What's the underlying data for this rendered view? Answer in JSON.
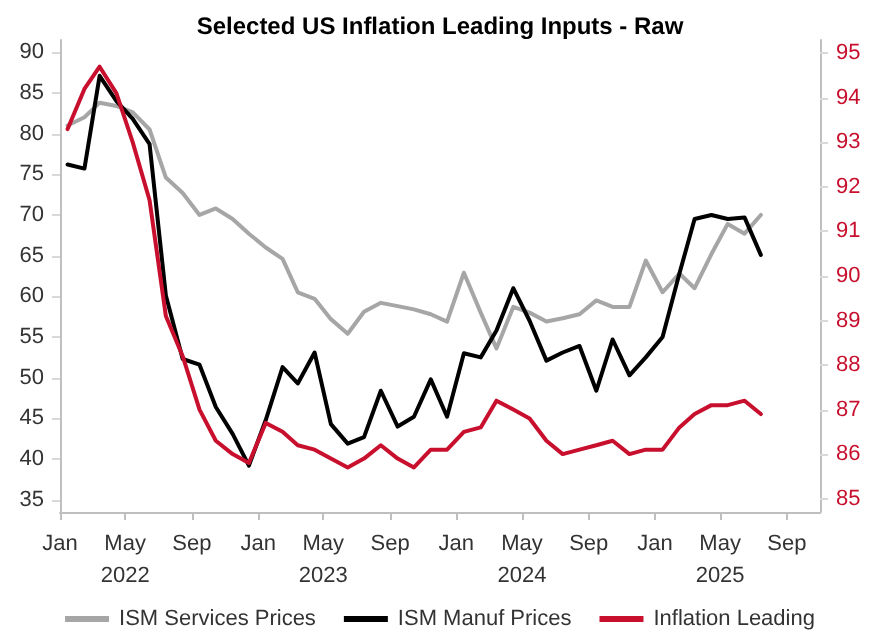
{
  "chart_data": {
    "type": "line",
    "title": "Selected US Inflation Leading Inputs - Raw",
    "x": [
      "2022-01-15",
      "2022-02-15",
      "2022-03-15",
      "2022-04-15",
      "2022-05-15",
      "2022-06-15",
      "2022-07-15",
      "2022-08-15",
      "2022-09-15",
      "2022-10-15",
      "2022-11-15",
      "2022-12-15",
      "2023-01-15",
      "2023-02-15",
      "2023-03-15",
      "2023-04-15",
      "2023-05-15",
      "2023-06-15",
      "2023-07-15",
      "2023-08-15",
      "2023-09-15",
      "2023-10-15",
      "2023-11-15",
      "2023-12-15",
      "2024-01-15",
      "2024-02-15",
      "2024-03-15",
      "2024-04-15",
      "2024-05-15",
      "2024-06-15",
      "2024-07-15",
      "2024-08-15",
      "2024-09-15",
      "2024-10-15",
      "2024-11-15",
      "2024-12-15",
      "2025-01-15",
      "2025-02-15",
      "2025-03-15",
      "2025-04-15",
      "2025-05-15",
      "2025-06-15",
      "2025-07-15"
    ],
    "series": [
      {
        "name": "ISM Services Prices",
        "color": "#a6a6a6",
        "values": [
          81.0,
          82.0,
          83.8,
          83.4,
          82.6,
          80.5,
          74.6,
          72.7,
          70.0,
          70.8,
          69.5,
          67.7,
          66.0,
          64.6,
          60.5,
          59.7,
          57.2,
          55.4,
          58.1,
          59.2,
          58.8,
          58.4,
          57.8,
          56.9,
          62.9,
          58.0,
          53.6,
          58.7,
          58.0,
          56.9,
          57.3,
          57.8,
          59.5,
          58.7,
          58.7,
          64.4,
          60.5,
          62.8,
          61.0,
          65.2,
          68.9,
          67.7,
          70.0
        ]
      },
      {
        "name": "ISM Manuf Prices",
        "color": "#000000",
        "values": [
          76.2,
          75.7,
          87.1,
          84.0,
          81.8,
          78.7,
          60.1,
          52.3,
          51.6,
          46.4,
          43.1,
          39.2,
          44.8,
          51.3,
          49.3,
          53.1,
          44.3,
          41.9,
          42.7,
          48.4,
          44.0,
          45.2,
          49.8,
          45.2,
          53.0,
          52.5,
          55.8,
          61.0,
          57.0,
          52.1,
          53.1,
          53.9,
          48.4,
          54.7,
          50.3,
          52.5,
          55.0,
          62.8,
          69.5,
          70.0,
          69.5,
          69.7,
          65.1
        ]
      },
      {
        "name": "Inflation Leading",
        "color": "#c8102e",
        "axis": "y2",
        "values": [
          93.3,
          94.2,
          94.7,
          94.1,
          93.0,
          91.7,
          89.1,
          88.2,
          87.0,
          86.3,
          86.0,
          85.8,
          86.7,
          86.5,
          86.2,
          86.1,
          85.9,
          85.7,
          85.9,
          86.2,
          85.9,
          85.7,
          86.1,
          86.1,
          86.5,
          86.6,
          87.2,
          87.0,
          86.8,
          86.3,
          86.0,
          86.1,
          86.2,
          86.3,
          86.0,
          86.1,
          86.1,
          86.6,
          86.9,
          87.1,
          87.1,
          87.2,
          86.9
        ]
      }
    ],
    "xlim": [
      "2022-01-01",
      "2025-11-01"
    ],
    "xticks": [
      {
        "value": "2022-01-01",
        "label": "Jan"
      },
      {
        "value": "2022-05-01",
        "label": "May\n2022"
      },
      {
        "value": "2022-09-01",
        "label": "Sep"
      },
      {
        "value": "2023-01-01",
        "label": "Jan"
      },
      {
        "value": "2023-05-01",
        "label": "May\n2023"
      },
      {
        "value": "2023-09-01",
        "label": "Sep"
      },
      {
        "value": "2024-01-01",
        "label": "Jan"
      },
      {
        "value": "2024-05-01",
        "label": "May\n2024"
      },
      {
        "value": "2024-09-01",
        "label": "Sep"
      },
      {
        "value": "2025-01-01",
        "label": "Jan"
      },
      {
        "value": "2025-05-01",
        "label": "May\n2025"
      },
      {
        "value": "2025-09-01",
        "label": "Sep"
      }
    ],
    "ylim": [
      33.5,
      91.5
    ],
    "yticks": [
      35,
      40,
      45,
      50,
      55,
      60,
      65,
      70,
      75,
      80,
      85,
      90
    ],
    "y2lim": [
      84.7,
      95.3
    ],
    "y2ticks": [
      85,
      86,
      87,
      88,
      89,
      90,
      91,
      92,
      93,
      94,
      95
    ],
    "grid": false,
    "legend": "bottom",
    "marker": "none",
    "line_style": "solid"
  }
}
